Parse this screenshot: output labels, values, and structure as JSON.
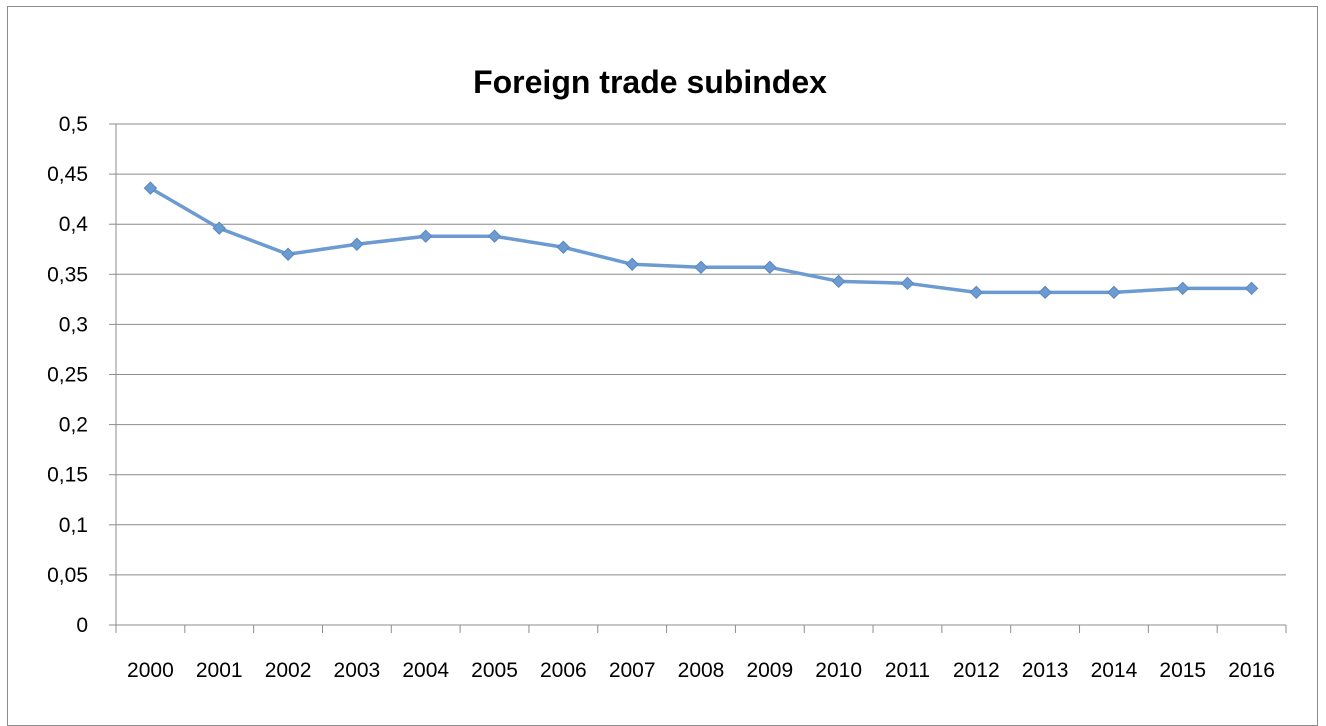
{
  "chart_data": {
    "type": "line",
    "title": "Foreign trade subindex",
    "xlabel": "",
    "ylabel": "",
    "ylim": [
      0,
      0.5
    ],
    "yticks": [
      "0",
      "0,05",
      "0,1",
      "0,15",
      "0,2",
      "0,25",
      "0,3",
      "0,35",
      "0,4",
      "0,45",
      "0,5"
    ],
    "ytick_values": [
      0,
      0.05,
      0.1,
      0.15,
      0.2,
      0.25,
      0.3,
      0.35,
      0.4,
      0.45,
      0.5
    ],
    "categories": [
      "2000",
      "2001",
      "2002",
      "2003",
      "2004",
      "2005",
      "2006",
      "2007",
      "2008",
      "2009",
      "2010",
      "2011",
      "2012",
      "2013",
      "2014",
      "2015",
      "2016"
    ],
    "series": [
      {
        "values": [
          0.436,
          0.396,
          0.37,
          0.38,
          0.388,
          0.388,
          0.377,
          0.36,
          0.357,
          0.357,
          0.343,
          0.341,
          0.332,
          0.332,
          0.332,
          0.336,
          0.336
        ],
        "color": "#6b9bd1"
      }
    ],
    "grid": true,
    "legend": "none",
    "marker": "diamond"
  }
}
